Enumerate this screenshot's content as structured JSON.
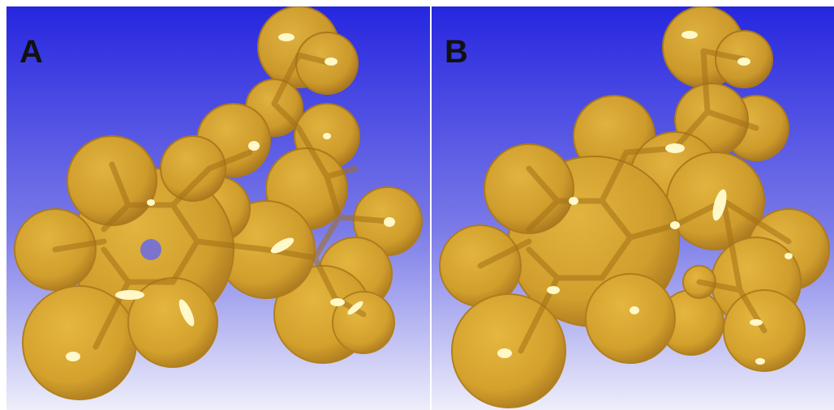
{
  "figure": {
    "panels": [
      {
        "label": "A"
      },
      {
        "label": "B"
      }
    ],
    "colors": {
      "background_top": "#2626e0",
      "background_bottom": "#eeeefb",
      "surface": "#d9a622",
      "surface_edge": "#b07c12",
      "bond": "#a37116",
      "highlight": "#fff8c8"
    }
  }
}
